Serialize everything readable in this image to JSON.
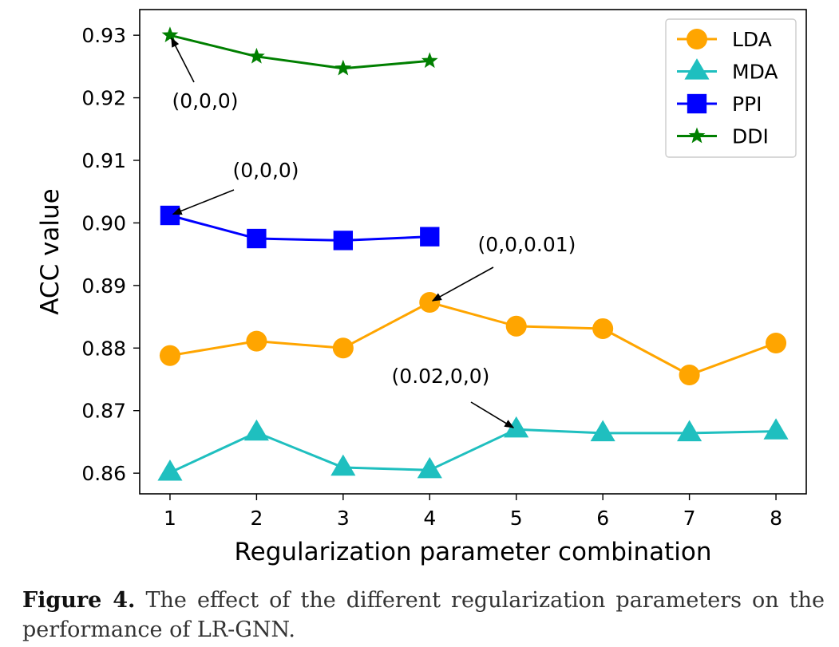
{
  "chart_data": {
    "type": "line",
    "xlabel": "Regularization parameter combination",
    "ylabel": "ACC value",
    "xlim": [
      0.65,
      8.35
    ],
    "ylim": [
      0.8567,
      0.9341
    ],
    "x_ticks": [
      1,
      2,
      3,
      4,
      5,
      6,
      7,
      8
    ],
    "y_ticks": [
      0.86,
      0.87,
      0.88,
      0.89,
      0.9,
      0.91,
      0.92,
      0.93
    ],
    "y_tick_labels": [
      "0.86",
      "0.87",
      "0.88",
      "0.89",
      "0.90",
      "0.91",
      "0.92",
      "0.93"
    ],
    "grid": false,
    "legend_position": "top-right",
    "series": [
      {
        "name": "LDA",
        "color": "#ffa500",
        "marker": "circle",
        "x": [
          1,
          2,
          3,
          4,
          5,
          6,
          7,
          8
        ],
        "values": [
          0.8788,
          0.8811,
          0.88,
          0.8873,
          0.8835,
          0.8831,
          0.8757,
          0.8808
        ]
      },
      {
        "name": "MDA",
        "color": "#1fbfbf",
        "marker": "triangle",
        "x": [
          1,
          2,
          3,
          4,
          5,
          6,
          7,
          8
        ],
        "values": [
          0.8601,
          0.8665,
          0.8609,
          0.8605,
          0.867,
          0.8664,
          0.8664,
          0.8667
        ]
      },
      {
        "name": "PPI",
        "color": "#0000ff",
        "marker": "square",
        "x": [
          1,
          2,
          3,
          4
        ],
        "values": [
          0.9012,
          0.8975,
          0.8972,
          0.8978
        ]
      },
      {
        "name": "DDI",
        "color": "#007f00",
        "marker": "star",
        "x": [
          1,
          2,
          3,
          4
        ],
        "values": [
          0.93,
          0.9266,
          0.9247,
          0.9259
        ]
      }
    ],
    "annotations": [
      {
        "text": "(0,0,0)",
        "series": "DDI",
        "x": 1,
        "y": 0.93
      },
      {
        "text": "(0,0,0)",
        "series": "PPI",
        "x": 1,
        "y": 0.9012
      },
      {
        "text": "(0,0,0.01)",
        "series": "LDA",
        "x": 4,
        "y": 0.8873
      },
      {
        "text": "(0.02,0,0)",
        "series": "MDA",
        "x": 5,
        "y": 0.867
      }
    ]
  },
  "caption": {
    "label": "Figure 4.",
    "text": " The effect of the different regularization parameters on the performance of LR-GNN."
  }
}
